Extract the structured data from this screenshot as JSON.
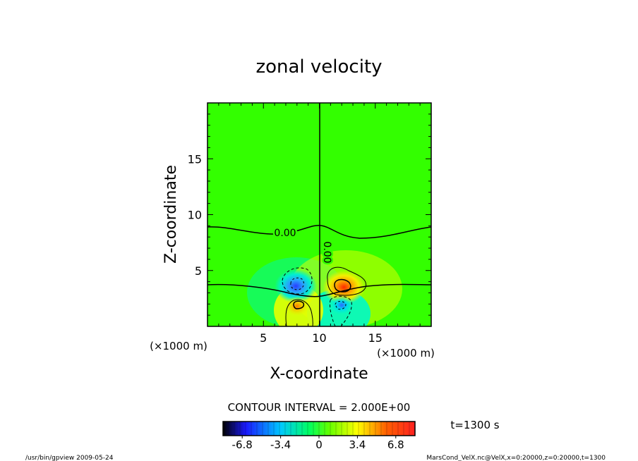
{
  "chart_data": {
    "type": "heatmap",
    "title": "zonal velocity",
    "xlabel": "X-coordinate",
    "ylabel": "Z-coordinate",
    "x_unit": "(×1000 m)",
    "y_unit": "(×1000 m)",
    "xlim": [
      0,
      20
    ],
    "ylim": [
      0,
      20
    ],
    "x_ticks": [
      5,
      10,
      15
    ],
    "y_ticks": [
      5,
      10,
      15
    ],
    "contour_interval_text": "CONTOUR INTERVAL = 2.000E+00",
    "contour_labels": [
      "0.00",
      "0.00"
    ],
    "time_text": "t=1300 s",
    "colorbar": {
      "min": -8.5,
      "max": 8.5,
      "tick_labels": [
        "-6.8",
        "-3.4",
        "0",
        "3.4",
        "6.8"
      ],
      "tick_values": [
        -6.8,
        -3.4,
        0,
        3.4,
        6.8
      ]
    },
    "features": [
      {
        "sign": "negative",
        "x": 7.9,
        "z": 3.6,
        "peak": -6.5
      },
      {
        "sign": "positive",
        "x": 12.2,
        "z": 3.5,
        "peak": 7.5
      },
      {
        "sign": "positive",
        "x": 8.0,
        "z": 1.8,
        "peak": 4.5
      },
      {
        "sign": "negative",
        "x": 12.0,
        "z": 1.9,
        "peak": -4.5
      }
    ],
    "colors": {
      "background_field": "#33ff00",
      "negative": "#1a33ff",
      "positive": "#ff3300"
    }
  },
  "footer": {
    "left": "/usr/bin/gpview   2009-05-24",
    "right": "MarsCond_VelX.nc@VelX,x=0:20000,z=0:20000,t=1300"
  }
}
